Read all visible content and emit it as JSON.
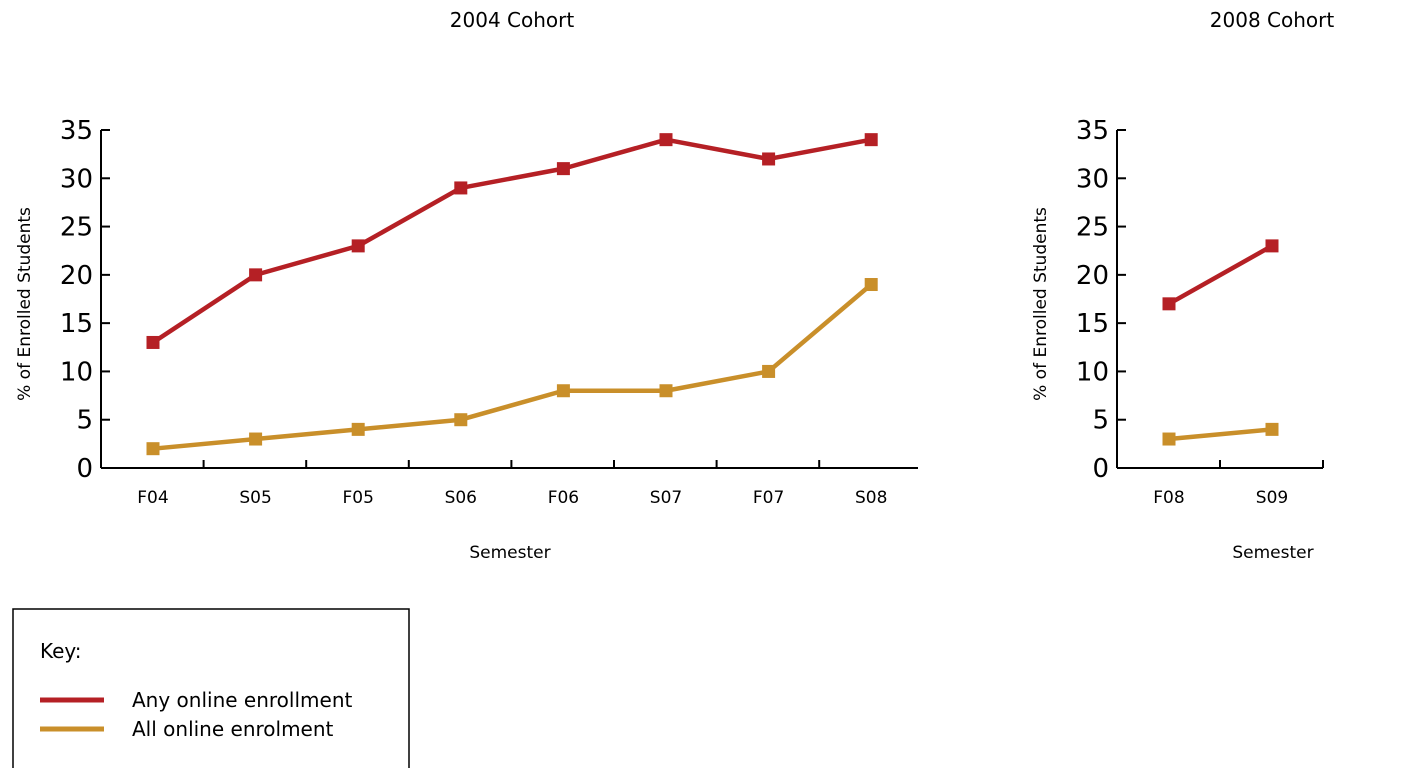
{
  "chart_data": [
    {
      "type": "line",
      "title": "2004 Cohort",
      "xlabel": "Semester",
      "ylabel": "% of Enrolled Students",
      "ylim": [
        0,
        35
      ],
      "yticks": [
        0,
        5,
        10,
        15,
        20,
        25,
        30,
        35
      ],
      "categories": [
        "F04",
        "S05",
        "F05",
        "S06",
        "F06",
        "S07",
        "F07",
        "S08"
      ],
      "series": [
        {
          "name": "Any online enrollment",
          "color": "#b52025",
          "values": [
            13,
            20,
            23,
            29,
            31,
            34,
            32,
            34
          ]
        },
        {
          "name": "All online enrolment",
          "color": "#c98f2a",
          "values": [
            2,
            3,
            4,
            5,
            8,
            8,
            10,
            19
          ]
        }
      ],
      "grid": false
    },
    {
      "type": "line",
      "title": "2008 Cohort",
      "xlabel": "Semester",
      "ylabel": "% of Enrolled Students",
      "ylim": [
        0,
        35
      ],
      "yticks": [
        0,
        5,
        10,
        15,
        20,
        25,
        30,
        35
      ],
      "categories": [
        "F08",
        "S09"
      ],
      "series": [
        {
          "name": "Any online enrollment",
          "color": "#b52025",
          "values": [
            17,
            23
          ]
        },
        {
          "name": "All online enrolment",
          "color": "#c98f2a",
          "values": [
            3,
            4
          ]
        }
      ],
      "grid": false
    }
  ],
  "legend": {
    "heading": "Key:",
    "placement": "bottom-left",
    "entries": [
      {
        "label": "Any online enrollment",
        "color": "#b52025"
      },
      {
        "label": "All online enrolment",
        "color": "#c98f2a"
      }
    ]
  }
}
